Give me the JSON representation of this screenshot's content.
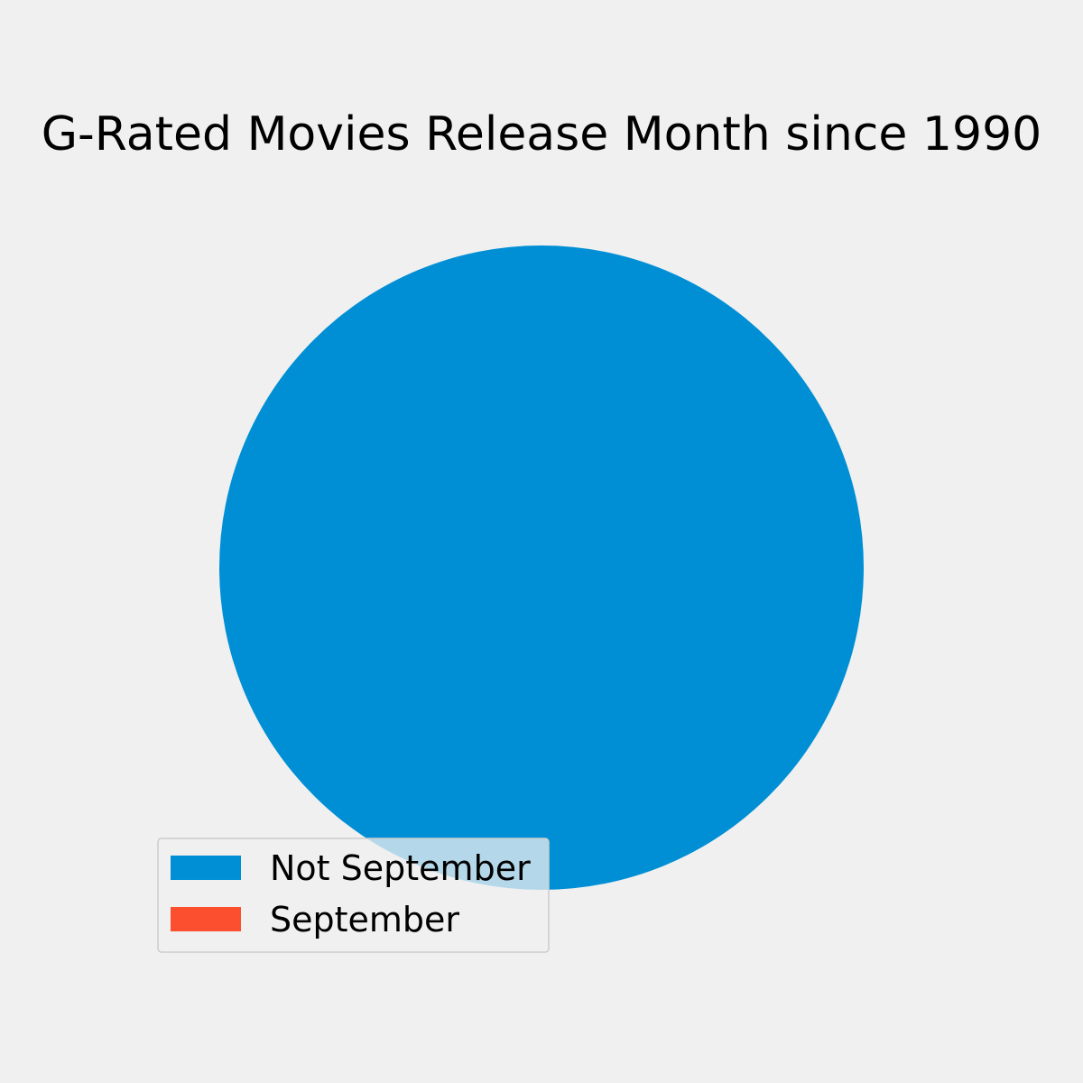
{
  "chart_data": {
    "type": "pie",
    "title": "G-Rated Movies Release Month since 1990",
    "slices": [
      {
        "label": "Not September",
        "value": 100,
        "color": "#008fd5"
      },
      {
        "label": "September",
        "value": 0,
        "color": "#fc4f30"
      }
    ],
    "legend_position": "lower-left",
    "background": "#f0f0f0"
  }
}
